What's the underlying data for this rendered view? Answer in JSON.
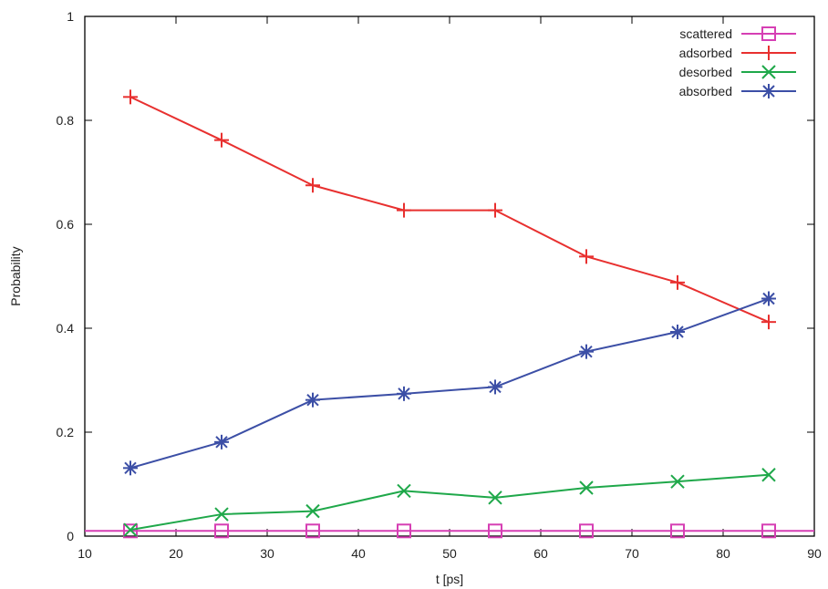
{
  "chart_data": {
    "type": "line",
    "xlabel": "t [ps]",
    "ylabel": "Probability",
    "xlim": [
      10,
      90
    ],
    "ylim": [
      0,
      1
    ],
    "xticks": [
      10,
      20,
      30,
      40,
      50,
      60,
      70,
      80,
      90
    ],
    "yticks": [
      0,
      0.2,
      0.4,
      0.6,
      0.8,
      1
    ],
    "ytick_labels": [
      "0",
      "0.2",
      "0.4",
      "0.6",
      "0.8",
      "1"
    ],
    "grid": false,
    "legend_position": "top-right",
    "x": [
      15,
      25,
      35,
      45,
      55,
      65,
      75,
      85
    ],
    "series": [
      {
        "name": "scattered",
        "color": "#d63fb4",
        "marker": "square",
        "values": [
          0.01,
          0.01,
          0.01,
          0.01,
          0.01,
          0.01,
          0.01,
          0.01
        ],
        "horizontal_line": 0.01
      },
      {
        "name": "adsorbed",
        "color": "#e8302f",
        "marker": "plus",
        "values": [
          0.845,
          0.762,
          0.675,
          0.627,
          0.627,
          0.538,
          0.488,
          0.412
        ]
      },
      {
        "name": "desorbed",
        "color": "#1fa84a",
        "marker": "cross",
        "values": [
          0.012,
          0.042,
          0.048,
          0.087,
          0.074,
          0.093,
          0.105,
          0.118
        ]
      },
      {
        "name": "absorbed",
        "color": "#3c4fa6",
        "marker": "star",
        "values": [
          0.131,
          0.181,
          0.262,
          0.274,
          0.287,
          0.355,
          0.393,
          0.457
        ]
      }
    ]
  }
}
